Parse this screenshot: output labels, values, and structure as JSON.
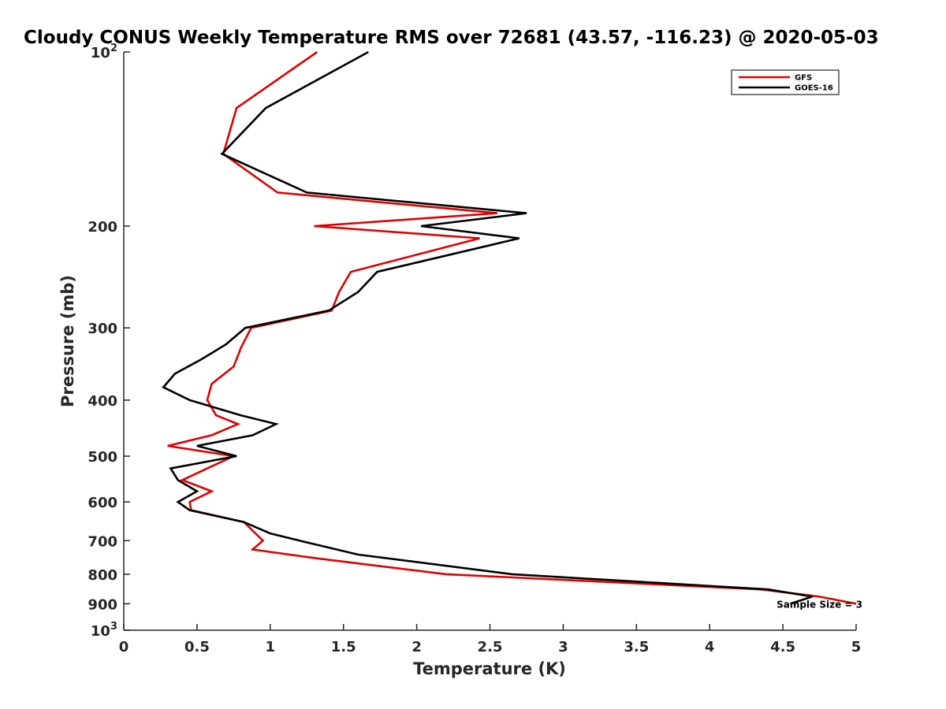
{
  "chart_data": {
    "type": "line",
    "title": "Cloudy CONUS Weekly Temperature RMS over 72681 (43.57, -116.23) @ 2020-05-03",
    "xlabel": "Temperature (K)",
    "ylabel": "Pressure (mb)",
    "xlim": [
      0,
      5
    ],
    "ylim": [
      100,
      1000
    ],
    "yscale": "log",
    "y_reversed": true,
    "grid": false,
    "legend_position": "top-right",
    "xticks": [
      "0",
      "0.5",
      "1",
      "1.5",
      "2",
      "2.5",
      "3",
      "3.5",
      "4",
      "4.5",
      "5"
    ],
    "yticks": [
      {
        "value": 100,
        "base": "10",
        "exp": "2"
      },
      {
        "value": 200,
        "label": "200"
      },
      {
        "value": 300,
        "label": "300"
      },
      {
        "value": 400,
        "label": "400"
      },
      {
        "value": 500,
        "label": "500"
      },
      {
        "value": 600,
        "label": "600"
      },
      {
        "value": 700,
        "label": "700"
      },
      {
        "value": 800,
        "label": "800"
      },
      {
        "value": 900,
        "label": "900"
      },
      {
        "value": 1000,
        "base": "10",
        "exp": "3"
      }
    ],
    "annotation": "Sample Size = 3",
    "annotation_at": {
      "x": 4.75,
      "y": 900
    },
    "series": [
      {
        "name": "GFS",
        "color": "#e00000",
        "points": [
          [
            1.32,
            100
          ],
          [
            0.77,
            125
          ],
          [
            0.68,
            150
          ],
          [
            1.05,
            175
          ],
          [
            2.55,
            190
          ],
          [
            1.3,
            200
          ],
          [
            2.43,
            210
          ],
          [
            1.55,
            240
          ],
          [
            1.47,
            260
          ],
          [
            1.42,
            280
          ],
          [
            0.87,
            300
          ],
          [
            0.8,
            325
          ],
          [
            0.75,
            350
          ],
          [
            0.6,
            375
          ],
          [
            0.57,
            400
          ],
          [
            0.63,
            425
          ],
          [
            0.78,
            440
          ],
          [
            0.6,
            460
          ],
          [
            0.3,
            480
          ],
          [
            0.75,
            500
          ],
          [
            0.57,
            525
          ],
          [
            0.4,
            550
          ],
          [
            0.6,
            575
          ],
          [
            0.45,
            600
          ],
          [
            0.46,
            620
          ],
          [
            0.82,
            650
          ],
          [
            0.95,
            700
          ],
          [
            0.88,
            725
          ],
          [
            1.3,
            750
          ],
          [
            2.2,
            800
          ],
          [
            4.35,
            850
          ],
          [
            4.75,
            875
          ],
          [
            5.0,
            900
          ]
        ]
      },
      {
        "name": "GOES-16",
        "color": "#000000",
        "points": [
          [
            1.67,
            100
          ],
          [
            0.97,
            125
          ],
          [
            0.67,
            150
          ],
          [
            1.25,
            175
          ],
          [
            2.75,
            190
          ],
          [
            2.03,
            200
          ],
          [
            2.7,
            210
          ],
          [
            1.73,
            240
          ],
          [
            1.6,
            260
          ],
          [
            1.4,
            280
          ],
          [
            0.83,
            300
          ],
          [
            0.7,
            320
          ],
          [
            0.53,
            340
          ],
          [
            0.35,
            360
          ],
          [
            0.27,
            380
          ],
          [
            0.45,
            400
          ],
          [
            0.8,
            425
          ],
          [
            1.04,
            440
          ],
          [
            0.88,
            460
          ],
          [
            0.5,
            480
          ],
          [
            0.77,
            500
          ],
          [
            0.32,
            525
          ],
          [
            0.37,
            550
          ],
          [
            0.5,
            575
          ],
          [
            0.37,
            600
          ],
          [
            0.45,
            620
          ],
          [
            0.82,
            650
          ],
          [
            1.0,
            680
          ],
          [
            1.2,
            700
          ],
          [
            1.6,
            740
          ],
          [
            2.65,
            800
          ],
          [
            4.4,
            850
          ],
          [
            4.7,
            875
          ],
          [
            4.55,
            900
          ]
        ]
      }
    ]
  }
}
